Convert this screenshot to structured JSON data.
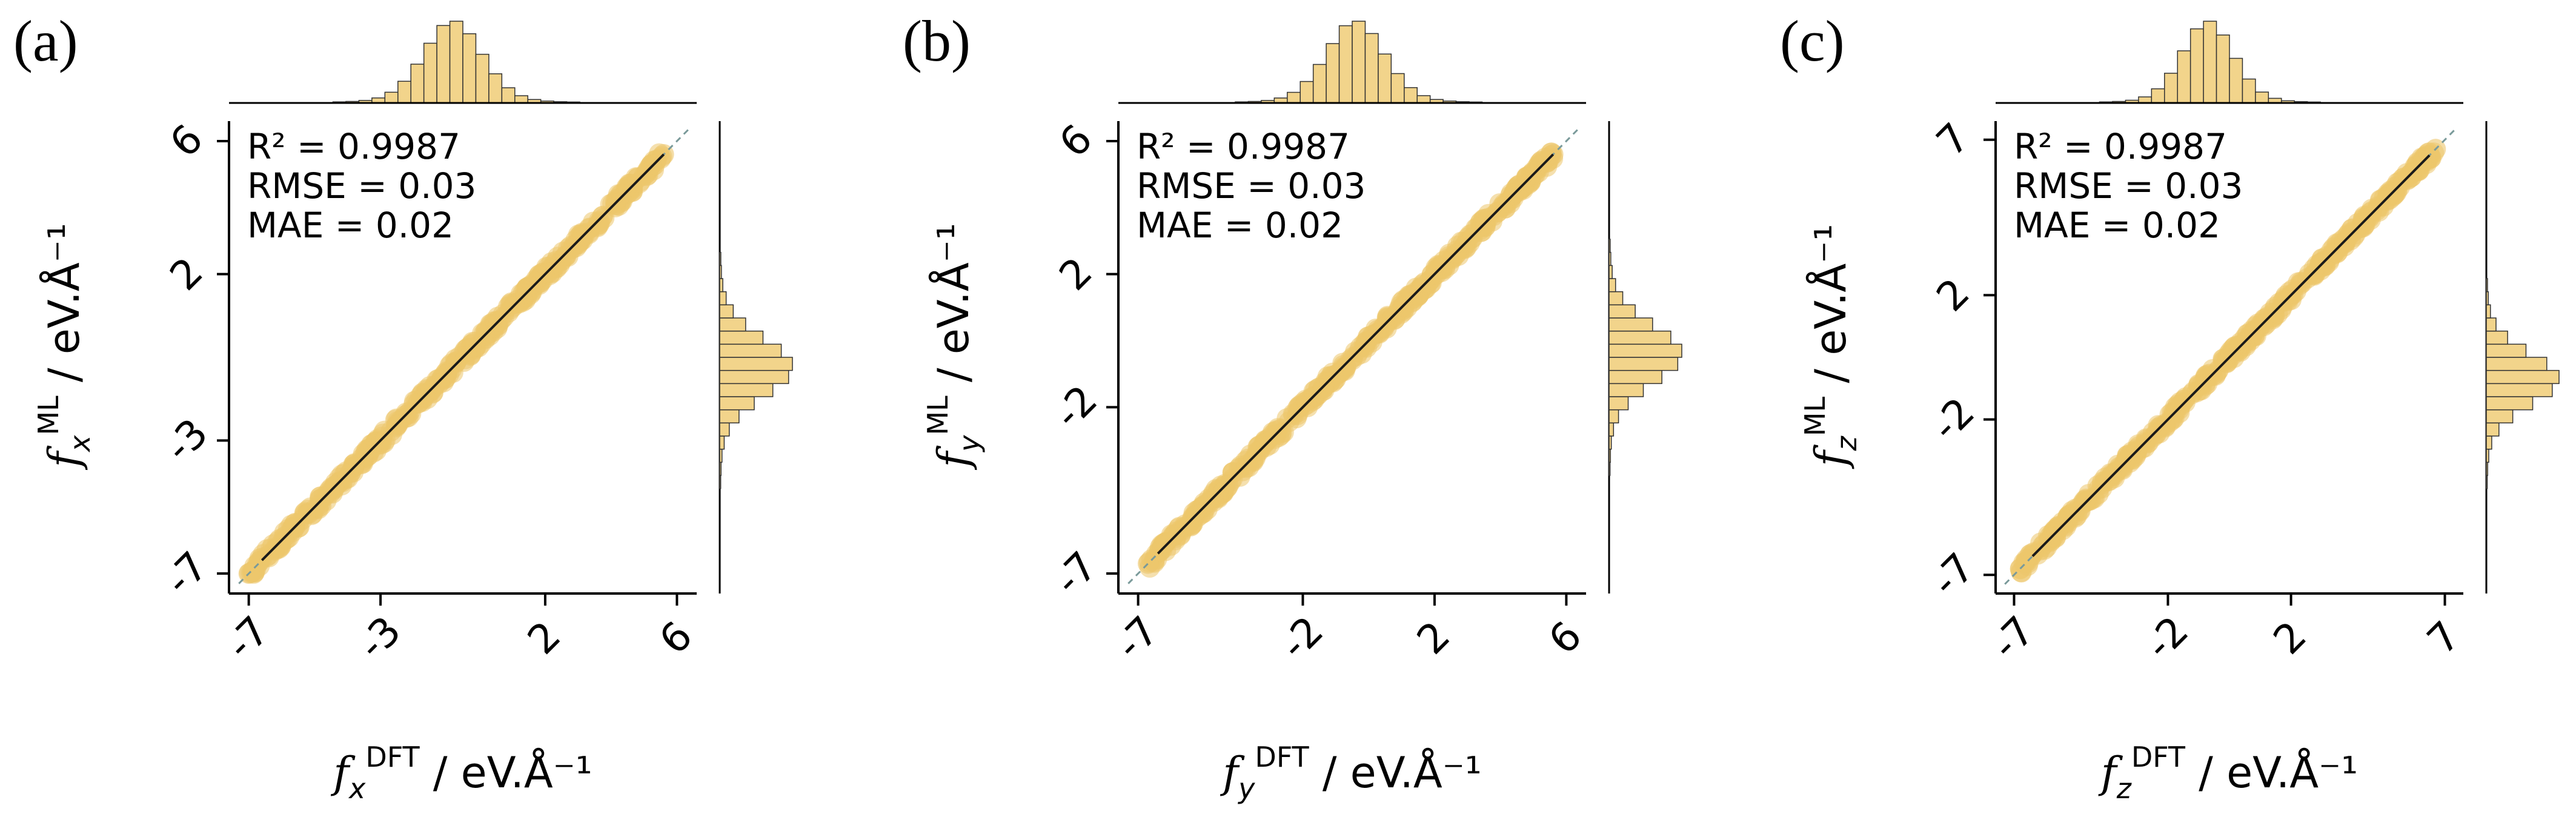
{
  "colors": {
    "points": "#ecc66c",
    "hist_fill": "#f2d48b",
    "hist_edge": "#333333",
    "fit_line": "#1a1a1a",
    "identity_line": "#7a9a9a"
  },
  "chart_data": [
    {
      "type": "scatter",
      "panel_label": "(a)",
      "component": "x",
      "stats": {
        "r2": "R² = 0.9987",
        "rmse": "RMSE = 0.03",
        "mae": "MAE = 0.02"
      },
      "xlabel": {
        "f": "f",
        "sub": "x",
        "sup": "DFT",
        "unit": " / eV.Å⁻¹"
      },
      "ylabel": {
        "f": "f",
        "sub": "x",
        "sup": "ML",
        "unit": " / eV.Å⁻¹"
      },
      "xlim": [
        -7.6,
        6.6
      ],
      "ylim": [
        -7.6,
        6.6
      ],
      "x_ticks": [
        {
          "value": -7,
          "label": "-7"
        },
        {
          "value": -3,
          "label": "-3"
        },
        {
          "value": 2,
          "label": "2"
        },
        {
          "value": 6,
          "label": "6"
        }
      ],
      "y_ticks": [
        {
          "value": -7,
          "label": "-7"
        },
        {
          "value": -3,
          "label": "-3"
        },
        {
          "value": 2,
          "label": "2"
        },
        {
          "value": 6,
          "label": "6"
        }
      ],
      "points_range": [
        -7.0,
        5.6
      ],
      "fit_line": {
        "from": -6.6,
        "to": 5.6
      },
      "hist_center": -0.8,
      "hist_sigma": 0.9
    },
    {
      "type": "scatter",
      "panel_label": "(b)",
      "component": "y",
      "stats": {
        "r2": "R² = 0.9987",
        "rmse": "RMSE = 0.03",
        "mae": "MAE = 0.02"
      },
      "xlabel": {
        "f": "f",
        "sub": "y",
        "sup": "DFT",
        "unit": " / eV.Å⁻¹"
      },
      "ylabel": {
        "f": "f",
        "sub": "y",
        "sup": "ML",
        "unit": " / eV.Å⁻¹"
      },
      "xlim": [
        -7.6,
        6.6
      ],
      "ylim": [
        -7.6,
        6.6
      ],
      "x_ticks": [
        {
          "value": -7,
          "label": "-7"
        },
        {
          "value": -2,
          "label": "-2"
        },
        {
          "value": 2,
          "label": "2"
        },
        {
          "value": 6,
          "label": "6"
        }
      ],
      "y_ticks": [
        {
          "value": -7,
          "label": "-7"
        },
        {
          "value": -2,
          "label": "-2"
        },
        {
          "value": 2,
          "label": "2"
        },
        {
          "value": 6,
          "label": "6"
        }
      ],
      "points_range": [
        -6.7,
        5.6
      ],
      "fit_line": {
        "from": -6.4,
        "to": 5.6
      },
      "hist_center": -0.4,
      "hist_sigma": 0.9
    },
    {
      "type": "scatter",
      "panel_label": "(c)",
      "component": "z",
      "stats": {
        "r2": "R² = 0.9987",
        "rmse": "RMSE = 0.03",
        "mae": "MAE = 0.02"
      },
      "xlabel": {
        "f": "f",
        "sub": "z",
        "sup": "DFT",
        "unit": " / eV.Å⁻¹"
      },
      "ylabel": {
        "f": "f",
        "sub": "z",
        "sup": "ML",
        "unit": " / eV.Å⁻¹"
      },
      "xlim": [
        -7.6,
        7.6
      ],
      "ylim": [
        -7.6,
        7.6
      ],
      "x_ticks": [
        {
          "value": -7,
          "label": "-7"
        },
        {
          "value": -2,
          "label": "-2"
        },
        {
          "value": 2,
          "label": "2"
        },
        {
          "value": 7,
          "label": "7"
        }
      ],
      "y_ticks": [
        {
          "value": -7,
          "label": "-7"
        },
        {
          "value": -2,
          "label": "-2"
        },
        {
          "value": 2,
          "label": "2"
        },
        {
          "value": 7,
          "label": "7"
        }
      ],
      "points_range": [
        -6.8,
        6.7
      ],
      "fit_line": {
        "from": -6.4,
        "to": 6.5
      },
      "hist_center": -0.7,
      "hist_sigma": 0.85
    }
  ]
}
